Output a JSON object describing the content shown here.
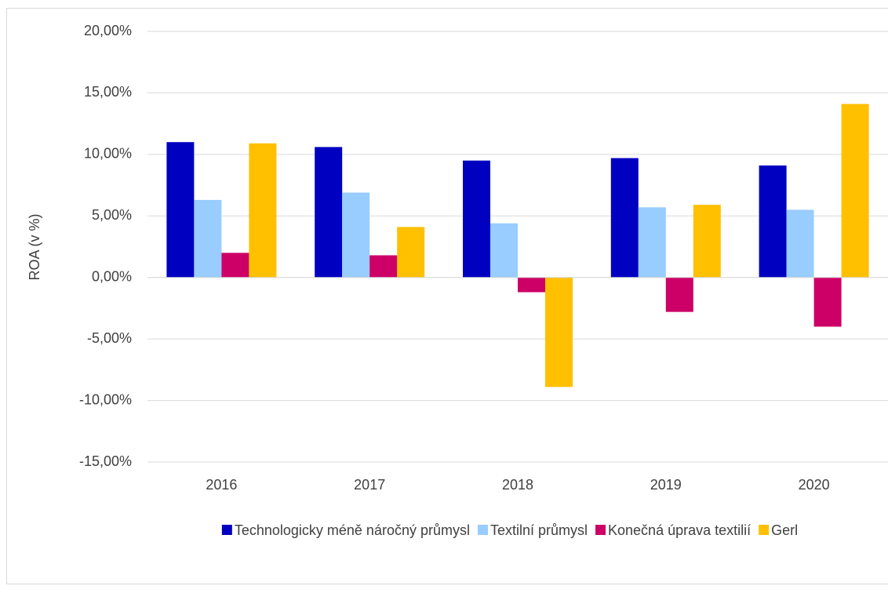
{
  "chart_data": {
    "type": "bar",
    "y_label": "ROA (v %)",
    "categories": [
      "2016",
      "2017",
      "2018",
      "2019",
      "2020"
    ],
    "series": [
      {
        "name": "Technologicky méně náročný průmysl",
        "color": "#0000C0",
        "values": [
          11.0,
          10.6,
          9.5,
          9.7,
          9.1
        ]
      },
      {
        "name": "Textilní průmysl",
        "color": "#99CCFF",
        "values": [
          6.3,
          6.9,
          4.4,
          5.7,
          5.5
        ]
      },
      {
        "name": "Konečná úprava textilií",
        "color": "#CC0066",
        "values": [
          2.0,
          1.8,
          -1.2,
          -2.8,
          -4.0
        ]
      },
      {
        "name": "Gerl",
        "color": "#FFC000",
        "values": [
          10.9,
          4.1,
          -8.9,
          5.9,
          14.1
        ]
      }
    ],
    "ylim": [
      -15,
      20
    ],
    "yticks": [
      {
        "value": -15,
        "label": "-15,00%"
      },
      {
        "value": -10,
        "label": "-10,00%"
      },
      {
        "value": -5,
        "label": "-5,00%"
      },
      {
        "value": 0,
        "label": "0,00%"
      },
      {
        "value": 5,
        "label": "5,00%"
      },
      {
        "value": 10,
        "label": "10,00%"
      },
      {
        "value": 15,
        "label": "15,00%"
      },
      {
        "value": 20,
        "label": "20,00%"
      }
    ],
    "grid": true,
    "legend": "bottom"
  }
}
